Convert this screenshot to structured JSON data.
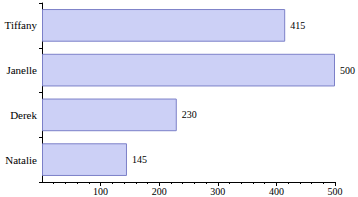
{
  "chart_data": {
    "type": "bar",
    "orientation": "horizontal",
    "categories": [
      "Tiffany",
      "Janelle",
      "Derek",
      "Natalie"
    ],
    "values": [
      415,
      500,
      230,
      145
    ],
    "color": "#ccd0f6",
    "xlim": [
      0,
      500
    ],
    "xticks": [
      100,
      200,
      300,
      400,
      500
    ],
    "grid": false,
    "data_labels": true
  }
}
